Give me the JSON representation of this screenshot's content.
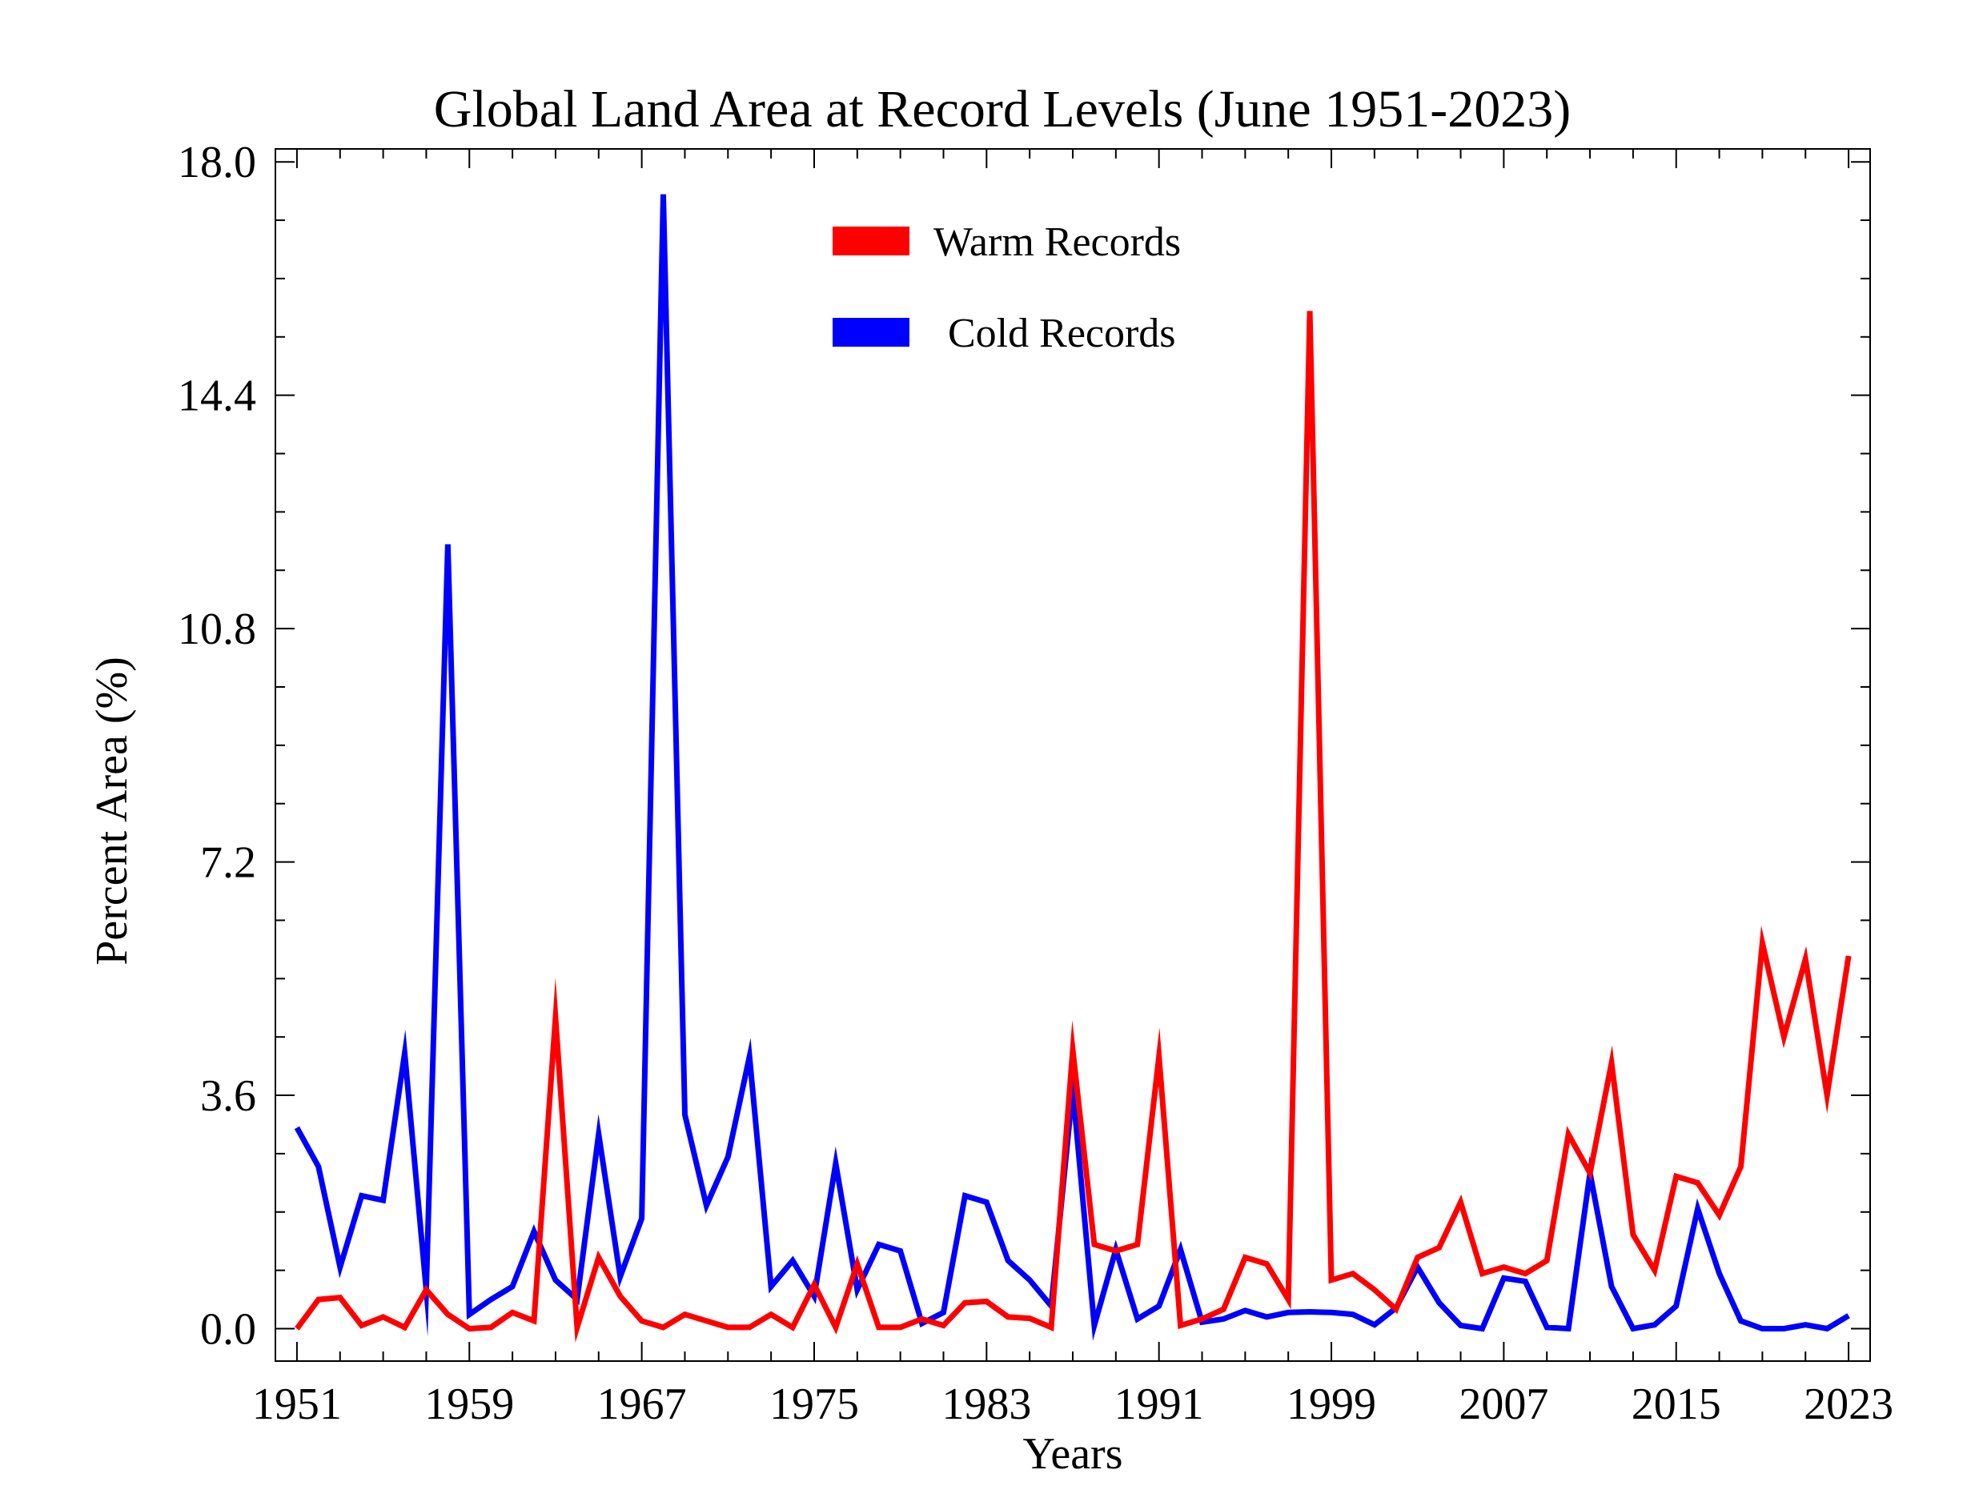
{
  "chart_data": {
    "type": "line",
    "title": "Global Land Area at Record Levels (June 1951-2023)",
    "xlabel": "Years",
    "ylabel": "Percent Area (%)",
    "xlim": [
      1950,
      2024
    ],
    "ylim": [
      -0.5,
      18.2
    ],
    "xticks": [
      "1951",
      "1959",
      "1967",
      "1975",
      "1983",
      "1991",
      "1999",
      "2007",
      "2015",
      "2023"
    ],
    "yticks": [
      "0.0",
      "3.6",
      "7.2",
      "10.8",
      "14.4",
      "18.0"
    ],
    "legend_position": "top-center",
    "grid": false,
    "x": [
      1951,
      1952,
      1953,
      1954,
      1955,
      1956,
      1957,
      1958,
      1959,
      1960,
      1961,
      1962,
      1963,
      1964,
      1965,
      1966,
      1967,
      1968,
      1969,
      1970,
      1971,
      1972,
      1973,
      1974,
      1975,
      1976,
      1977,
      1978,
      1979,
      1980,
      1981,
      1982,
      1983,
      1984,
      1985,
      1986,
      1987,
      1988,
      1989,
      1990,
      1991,
      1992,
      1993,
      1994,
      1995,
      1996,
      1997,
      1998,
      1999,
      2000,
      2001,
      2002,
      2003,
      2004,
      2005,
      2006,
      2007,
      2008,
      2009,
      2010,
      2011,
      2012,
      2013,
      2014,
      2015,
      2016,
      2017,
      2018,
      2019,
      2020,
      2021,
      2022,
      2023
    ],
    "series": [
      {
        "name": "Warm Records",
        "color": "#ff0000",
        "values": [
          0.0,
          0.45,
          0.48,
          0.05,
          0.18,
          0.02,
          0.6,
          0.22,
          0.0,
          0.02,
          0.25,
          0.12,
          4.8,
          0.02,
          1.1,
          0.5,
          0.12,
          0.02,
          0.22,
          0.12,
          0.02,
          0.02,
          0.22,
          0.02,
          0.68,
          0.02,
          1.0,
          0.02,
          0.02,
          0.15,
          0.05,
          0.4,
          0.42,
          0.18,
          0.16,
          0.02,
          4.3,
          1.3,
          1.2,
          1.3,
          4.2,
          0.05,
          0.15,
          0.3,
          1.1,
          1.0,
          0.45,
          15.7,
          0.75,
          0.85,
          0.6,
          0.3,
          1.1,
          1.25,
          1.95,
          0.85,
          0.95,
          0.85,
          1.05,
          3.0,
          2.4,
          4.1,
          1.45,
          0.9,
          2.35,
          2.25,
          1.75,
          2.5,
          5.95,
          4.5,
          5.7,
          3.6,
          5.75
        ]
      },
      {
        "name": "Cold Records",
        "color": "#0000ff",
        "values": [
          3.1,
          2.5,
          0.95,
          2.05,
          1.98,
          4.25,
          0.6,
          12.1,
          0.22,
          0.45,
          0.65,
          1.5,
          0.75,
          0.45,
          3.0,
          0.8,
          1.7,
          17.5,
          3.3,
          1.9,
          2.65,
          4.2,
          0.65,
          1.05,
          0.5,
          2.55,
          0.6,
          1.3,
          1.2,
          0.08,
          0.25,
          2.05,
          1.95,
          1.05,
          0.75,
          0.35,
          3.7,
          0.05,
          1.22,
          0.15,
          0.35,
          1.22,
          0.1,
          0.15,
          0.28,
          0.18,
          0.25,
          0.26,
          0.25,
          0.22,
          0.06,
          0.32,
          0.95,
          0.4,
          0.05,
          0.0,
          0.78,
          0.73,
          0.02,
          0.0,
          2.4,
          0.65,
          0.0,
          0.06,
          0.35,
          1.85,
          0.85,
          0.12,
          0.0,
          0.0,
          0.06,
          0.0,
          0.2
        ]
      }
    ]
  }
}
